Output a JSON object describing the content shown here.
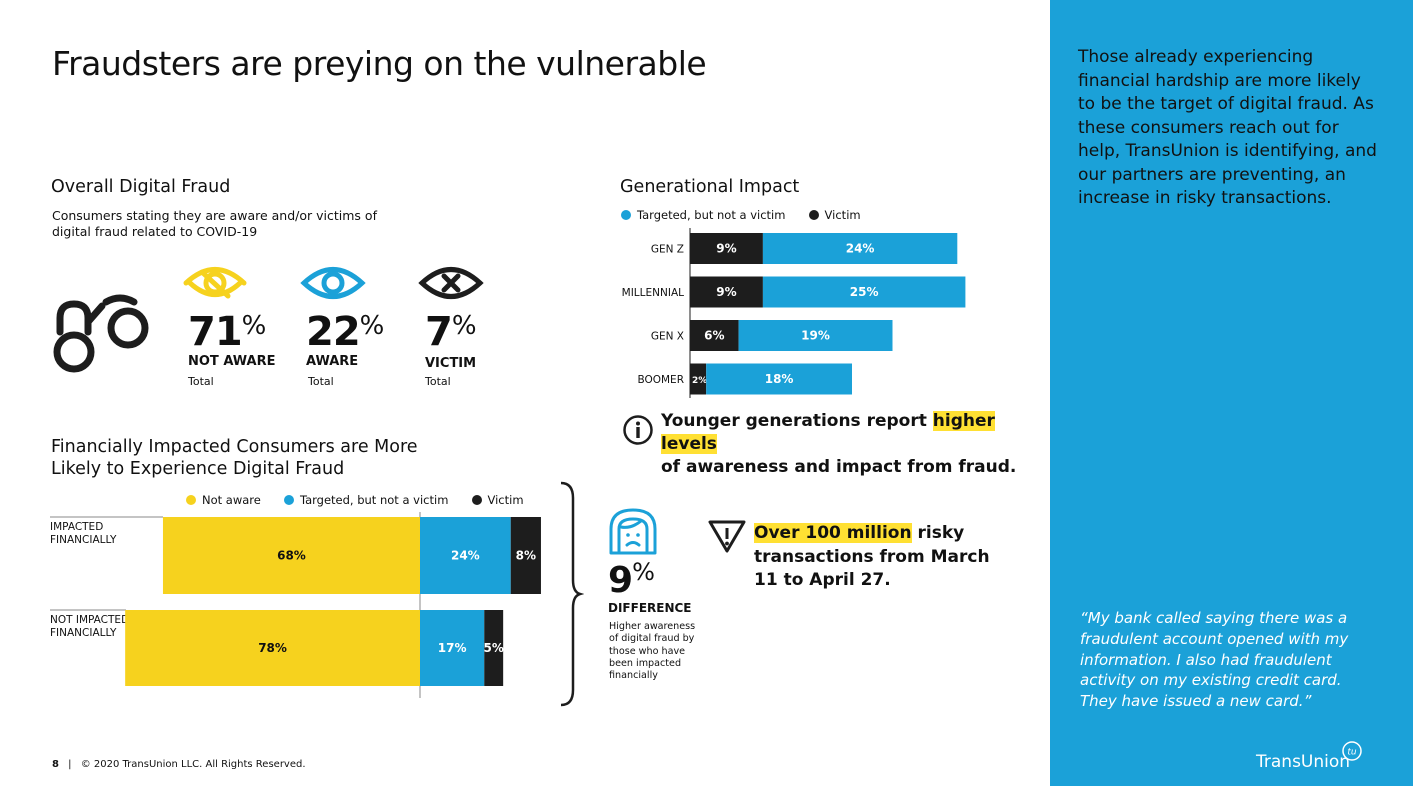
{
  "title": "Fraudsters are preying on the vulnerable",
  "overall": {
    "title": "Overall Digital Fraud",
    "subtitle": "Consumers stating they are aware and/or victims of digital fraud related to COVID-19",
    "stats": [
      {
        "value": "71",
        "pct": "%",
        "label": "NOT AWARE",
        "sub": "Total",
        "icon": "eye-slash-icon",
        "color": "#f6d21e"
      },
      {
        "value": "22",
        "pct": "%",
        "label": "AWARE",
        "sub": "Total",
        "icon": "eye-icon",
        "color": "#1ba1d8"
      },
      {
        "value": "7",
        "pct": "%",
        "label": "VICTIM",
        "sub": "Total",
        "icon": "eye-x-icon",
        "color": "#111111"
      }
    ]
  },
  "generational": {
    "title": "Generational Impact",
    "legend": [
      "Targeted, but not a victim",
      "Victim"
    ],
    "note_pre": "Younger generations report ",
    "note_hl": "higher levels",
    "note_post": "of awareness and impact from fraud."
  },
  "financial": {
    "title_line1": "Financially Impacted Consumers are More",
    "title_line2": "Likely to Experience Digital Fraud",
    "legend": [
      "Not aware",
      "Targeted, but not a victim",
      "Victim"
    ],
    "rows": [
      "IMPACTED FINANCIALLY",
      "NOT IMPACTED FINANCIALLY"
    ]
  },
  "difference": {
    "value": "9",
    "pct": "%",
    "label": "DIFFERENCE",
    "desc": "Higher awareness of digital fraud by those who have been impacted financially"
  },
  "risk": {
    "hl": "Over 100 million",
    "rest": " risky transactions from March 11 to April 27."
  },
  "panel": {
    "text": "Those already experiencing financial hardship are more likely to be the target of digital fraud. As these consumers reach out for help, TransUnion is identifying, and our partners are preventing, an increase in risky transactions.",
    "quote": "“My bank called saying there was a fraudulent account opened with my information. I also had fraudulent activity on my existing credit card. They have issued a new card.”",
    "brand": "TransUnion",
    "brand_mark": "tu"
  },
  "footer": {
    "page": "8",
    "sep": "|",
    "copyright": "© 2020 TransUnion LLC. All Rights Reserved."
  },
  "colors": {
    "yellow": "#f6d21e",
    "blue": "#1ba1d8",
    "black": "#1d1d1d",
    "panel": "#1ba1d8"
  },
  "chart_data": [
    {
      "type": "bar",
      "orientation": "horizontal",
      "stacked": true,
      "title": "Generational Impact",
      "categories": [
        "GEN Z",
        "MILLENNIAL",
        "GEN X",
        "BOOMER"
      ],
      "series": [
        {
          "name": "Victim",
          "values": [
            9,
            9,
            6,
            2
          ],
          "labels": [
            "9%",
            "9%",
            "6%",
            "2%"
          ],
          "color": "#1d1d1d"
        },
        {
          "name": "Targeted, but not a victim",
          "values": [
            24,
            25,
            19,
            18
          ],
          "labels": [
            "24%",
            "25%",
            "19%",
            "18%"
          ],
          "color": "#1ba1d8"
        }
      ],
      "legend": "top-left"
    },
    {
      "type": "bar",
      "orientation": "horizontal",
      "stacked": true,
      "title": "Financially Impacted Consumers are More Likely to Experience Digital Fraud",
      "categories": [
        "IMPACTED FINANCIALLY",
        "NOT IMPACTED FINANCIALLY"
      ],
      "series": [
        {
          "name": "Not aware",
          "values": [
            68,
            78
          ],
          "labels": [
            "68%",
            "78%"
          ],
          "color": "#f6d21e"
        },
        {
          "name": "Targeted, but not a victim",
          "values": [
            24,
            17
          ],
          "labels": [
            "24%",
            "17%"
          ],
          "color": "#1ba1d8"
        },
        {
          "name": "Victim",
          "values": [
            8,
            5
          ],
          "labels": [
            "8%",
            "5%"
          ],
          "color": "#1d1d1d"
        }
      ],
      "legend": "top"
    }
  ]
}
